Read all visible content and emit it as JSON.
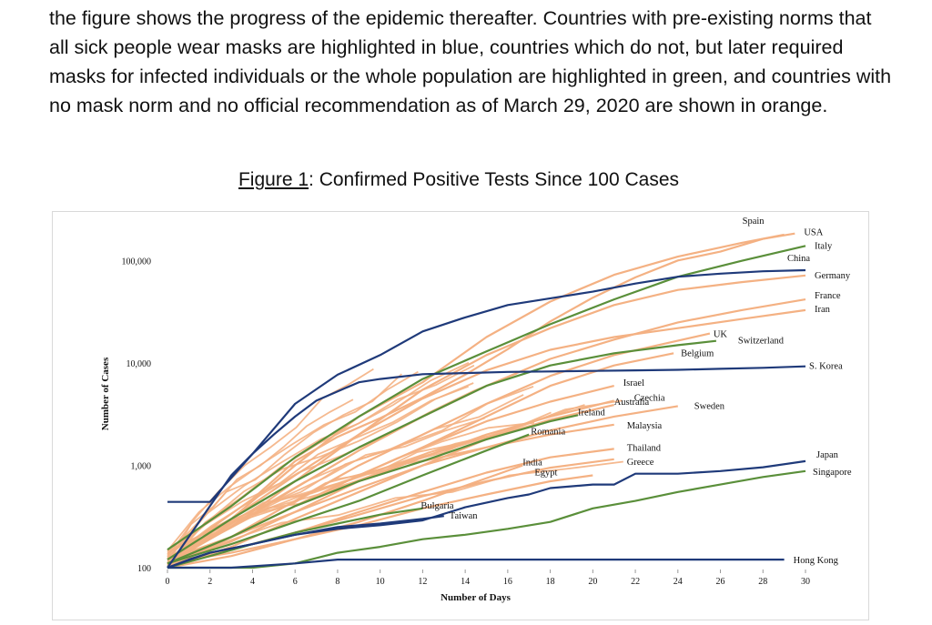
{
  "document": {
    "intro_paragraph": "the figure shows the progress of the epidemic thereafter. Countries with pre-existing norms that all sick people wear masks are highlighted in blue, countries which do not, but later required masks for infected individuals or the whole population are highlighted in green, and countries with no mask norm and no official recommendation as of March 29, 2020 are shown in orange.",
    "figure_label": "Figure 1",
    "figure_title": ": Confirmed Positive Tests Since 100 Cases"
  },
  "chart_data": {
    "type": "line",
    "title": "Figure 1: Confirmed Positive Tests Since 100 Cases",
    "xlabel": "Number of Days",
    "ylabel": "Number of Cases",
    "yscale": "log",
    "xlim": [
      0,
      30
    ],
    "ylim": [
      100,
      250000
    ],
    "xticks": [
      0,
      2,
      4,
      6,
      8,
      10,
      12,
      14,
      16,
      18,
      20,
      22,
      24,
      26,
      28,
      30
    ],
    "yticks": [
      {
        "value": 100,
        "label": "100"
      },
      {
        "value": 1000,
        "label": "1,000"
      },
      {
        "value": 10000,
        "label": "10,000"
      },
      {
        "value": 100000,
        "label": "100,000"
      }
    ],
    "colors": {
      "blue": "#1f3a7a",
      "green": "#5a8f3a",
      "orange": "#f4b183"
    },
    "series": [
      {
        "name": "USA",
        "group": "orange",
        "x": [
          0,
          2,
          4,
          6,
          8,
          10,
          12,
          14,
          16,
          18,
          20,
          22,
          24,
          26,
          28,
          29.5
        ],
        "y": [
          120,
          240,
          470,
          1100,
          1900,
          2900,
          4600,
          7700,
          13700,
          25600,
          43700,
          69000,
          101000,
          123000,
          164000,
          185000
        ],
        "label_dx": 10,
        "label_dy": 2
      },
      {
        "name": "Spain",
        "group": "orange",
        "x": [
          0,
          3,
          6,
          9,
          12,
          15,
          18,
          21,
          24,
          27,
          29
        ],
        "y": [
          120,
          300,
          1000,
          3000,
          6500,
          18000,
          40000,
          73000,
          110000,
          150000,
          180000
        ],
        "label_dx": -46,
        "label_dy": -12
      },
      {
        "name": "Italy",
        "group": "green",
        "x": [
          0,
          3,
          6,
          9,
          12,
          15,
          18,
          21,
          24,
          27,
          30
        ],
        "y": [
          150,
          400,
          1200,
          3000,
          7000,
          13000,
          24000,
          42000,
          70000,
          100000,
          140000
        ],
        "label_dx": 10,
        "label_dy": 3
      },
      {
        "name": "China",
        "group": "blue",
        "x": [
          0,
          2,
          4,
          6,
          8,
          10,
          12,
          14,
          16,
          18,
          20,
          22,
          24,
          26,
          28,
          30
        ],
        "y": [
          440,
          440,
          1300,
          4000,
          7700,
          12000,
          20400,
          28000,
          37000,
          43000,
          50000,
          60000,
          70000,
          75000,
          79000,
          81000
        ],
        "label_dx": -20,
        "label_dy": -10
      },
      {
        "name": "Germany",
        "group": "orange",
        "x": [
          0,
          3,
          6,
          9,
          12,
          15,
          18,
          21,
          24,
          27,
          30
        ],
        "y": [
          110,
          250,
          700,
          2000,
          5500,
          12000,
          22000,
          37000,
          52000,
          62000,
          72000
        ],
        "label_dx": 10,
        "label_dy": 3
      },
      {
        "name": "France",
        "group": "orange",
        "x": [
          0,
          3,
          6,
          9,
          12,
          15,
          18,
          21,
          24,
          27,
          30
        ],
        "y": [
          120,
          250,
          600,
          1400,
          3000,
          6000,
          11000,
          17000,
          25000,
          33000,
          42000
        ],
        "label_dx": 10,
        "label_dy": -1
      },
      {
        "name": "Iran",
        "group": "orange",
        "x": [
          0,
          3,
          6,
          9,
          12,
          15,
          18,
          21,
          24,
          27,
          30
        ],
        "y": [
          140,
          300,
          800,
          2000,
          4500,
          8500,
          13500,
          18000,
          22000,
          27000,
          33000
        ],
        "label_dx": 10,
        "label_dy": 2
      },
      {
        "name": "UK",
        "group": "orange",
        "x": [
          0,
          3,
          6,
          9,
          12,
          15,
          18,
          21,
          25.5
        ],
        "y": [
          100,
          200,
          450,
          1000,
          2000,
          4000,
          7500,
          12000,
          19500
        ],
        "label_dx": 4,
        "label_dy": 4
      },
      {
        "name": "Switzerland",
        "group": "green",
        "x": [
          0,
          3,
          6,
          9,
          12,
          15,
          18,
          21,
          24,
          25.8
        ],
        "y": [
          120,
          300,
          700,
          1500,
          3000,
          6000,
          9500,
          12500,
          15000,
          16500
        ],
        "label_dx": 24,
        "label_dy": 3
      },
      {
        "name": "Belgium",
        "group": "orange",
        "x": [
          0,
          3,
          6,
          9,
          12,
          15,
          18,
          21,
          23.8
        ],
        "y": [
          110,
          200,
          400,
          800,
          1500,
          3000,
          6000,
          9500,
          12500
        ],
        "label_dx": 8,
        "label_dy": 3
      },
      {
        "name": "S. Korea",
        "group": "blue",
        "x": [
          0,
          1,
          2,
          3,
          4,
          5,
          6,
          7,
          8,
          9,
          10,
          12,
          14,
          16,
          18,
          20,
          22,
          24,
          26,
          28,
          30
        ],
        "y": [
          100,
          200,
          400,
          800,
          1300,
          2000,
          3000,
          4300,
          5300,
          6500,
          7000,
          7800,
          8000,
          8200,
          8300,
          8400,
          8500,
          8600,
          8800,
          9000,
          9300
        ],
        "label_dx": 4,
        "label_dy": 3
      },
      {
        "name": "Israel",
        "group": "orange",
        "x": [
          0,
          3,
          6,
          9,
          12,
          15,
          18,
          21
        ],
        "y": [
          100,
          200,
          400,
          800,
          1500,
          2700,
          4200,
          6000
        ],
        "label_dx": 10,
        "label_dy": 0
      },
      {
        "name": "Czechia",
        "group": "orange",
        "x": [
          0,
          3,
          6,
          9,
          12,
          15,
          18,
          21
        ],
        "y": [
          110,
          180,
          350,
          700,
          1200,
          2000,
          3000,
          4300
        ],
        "label_dx": 22,
        "label_dy": 0
      },
      {
        "name": "Australia",
        "group": "orange",
        "x": [
          0,
          3,
          6,
          9,
          12,
          15,
          18,
          21
        ],
        "y": [
          100,
          160,
          300,
          550,
          1000,
          1800,
          2800,
          3900
        ],
        "label_dx": 0,
        "label_dy": 0
      },
      {
        "name": "Ireland",
        "group": "green",
        "x": [
          0,
          3,
          6,
          9,
          12,
          15,
          18,
          19.3
        ],
        "y": [
          110,
          200,
          400,
          700,
          1100,
          1800,
          2700,
          3100
        ],
        "label_dx": 0,
        "label_dy": 0
      },
      {
        "name": "Sweden",
        "group": "orange",
        "x": [
          0,
          3,
          6,
          9,
          12,
          15,
          18,
          21,
          24
        ],
        "y": [
          110,
          200,
          400,
          700,
          1100,
          1500,
          2200,
          3000,
          3800
        ],
        "label_dx": 18,
        "label_dy": 3
      },
      {
        "name": "Malaysia",
        "group": "orange",
        "x": [
          0,
          3,
          6,
          9,
          12,
          15,
          18,
          21
        ],
        "y": [
          120,
          200,
          350,
          600,
          1000,
          1500,
          2000,
          2500
        ],
        "label_dx": 14,
        "label_dy": 4
      },
      {
        "name": "Romania",
        "group": "green",
        "x": [
          0,
          3,
          6,
          9,
          12,
          15,
          17
        ],
        "y": [
          110,
          170,
          280,
          450,
          800,
          1400,
          2000
        ],
        "label_dx": 2,
        "label_dy": 0
      },
      {
        "name": "Thailand",
        "group": "orange",
        "x": [
          0,
          3,
          6,
          9,
          12,
          15,
          18,
          21
        ],
        "y": [
          110,
          150,
          220,
          350,
          550,
          850,
          1200,
          1450
        ],
        "label_dx": 14,
        "label_dy": 2
      },
      {
        "name": "India",
        "group": "orange",
        "x": [
          0,
          3,
          6,
          9,
          12,
          15,
          16.7
        ],
        "y": [
          100,
          130,
          190,
          280,
          450,
          750,
          1000
        ],
        "label_dx": 0,
        "label_dy": 0
      },
      {
        "name": "Greece",
        "group": "orange",
        "x": [
          0,
          3,
          6,
          9,
          12,
          15,
          18,
          21
        ],
        "y": [
          100,
          150,
          220,
          330,
          500,
          700,
          950,
          1150
        ],
        "label_dx": 14,
        "label_dy": 6
      },
      {
        "name": "Egypt",
        "group": "orange",
        "x": [
          0,
          3,
          6,
          9,
          12,
          15,
          18,
          20
        ],
        "y": [
          110,
          140,
          190,
          260,
          380,
          520,
          700,
          800
        ],
        "label_dx": -64,
        "label_dy": 0
      },
      {
        "name": "Bulgaria",
        "group": "green",
        "x": [
          0,
          2,
          4,
          6,
          8,
          10,
          12
        ],
        "y": [
          100,
          130,
          170,
          220,
          270,
          330,
          380
        ],
        "label_dx": -2,
        "label_dy": 0
      },
      {
        "name": "Taiwan",
        "group": "blue",
        "x": [
          0,
          1,
          2,
          4,
          6,
          8,
          10,
          12,
          13
        ],
        "y": [
          100,
          120,
          140,
          170,
          210,
          250,
          270,
          300,
          320
        ],
        "label_dx": 6,
        "label_dy": 3
      },
      {
        "name": "Japan",
        "group": "blue",
        "x": [
          0,
          2,
          4,
          6,
          8,
          10,
          12,
          14,
          16,
          17,
          18,
          20,
          21,
          22,
          24,
          26,
          28,
          30
        ],
        "y": [
          100,
          140,
          170,
          210,
          240,
          260,
          290,
          390,
          480,
          520,
          600,
          650,
          650,
          830,
          830,
          880,
          960,
          1100
        ],
        "label_dx": 12,
        "label_dy": -4
      },
      {
        "name": "Singapore",
        "group": "green",
        "x": [
          0,
          2,
          4,
          6,
          8,
          10,
          12,
          14,
          16,
          18,
          20,
          22,
          24,
          26,
          28,
          30
        ],
        "y": [
          100,
          100,
          100,
          110,
          140,
          160,
          190,
          210,
          240,
          280,
          380,
          450,
          550,
          650,
          770,
          880
        ],
        "label_dx": 8,
        "label_dy": 4
      },
      {
        "name": "Hong Kong",
        "group": "blue",
        "x": [
          0,
          3,
          6,
          8,
          12,
          16,
          20,
          24,
          28,
          29
        ],
        "y": [
          100,
          100,
          110,
          120,
          120,
          120,
          120,
          120,
          120,
          120
        ],
        "label_dx": 10,
        "label_dy": 4
      }
    ],
    "unlabeled_series_count": 20
  }
}
